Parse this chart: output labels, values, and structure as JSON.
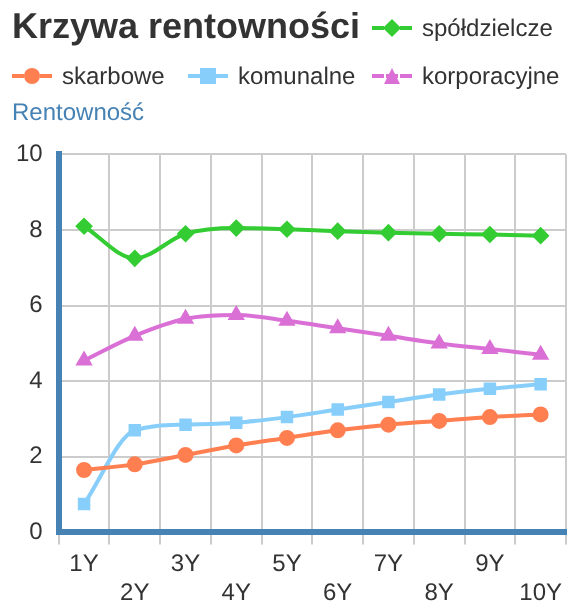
{
  "chart_data": {
    "type": "line",
    "title": "Krzywa rentowności",
    "ylabel": "Rentowność",
    "categories": [
      "1Y",
      "2Y",
      "3Y",
      "4Y",
      "5Y",
      "6Y",
      "7Y",
      "8Y",
      "9Y",
      "10Y"
    ],
    "series": [
      {
        "name": "spółdzielcze",
        "color": "#33cc33",
        "marker": "diamond",
        "values": [
          8.1,
          7.25,
          7.9,
          8.05,
          8.02,
          7.97,
          7.93,
          7.9,
          7.88,
          7.85
        ]
      },
      {
        "name": "skarbowe",
        "color": "#ff7f50",
        "marker": "circle",
        "values": [
          1.65,
          1.8,
          2.05,
          2.3,
          2.5,
          2.7,
          2.85,
          2.95,
          3.05,
          3.12
        ]
      },
      {
        "name": "komunalne",
        "color": "#87cefa",
        "marker": "square",
        "values": [
          0.75,
          2.7,
          2.85,
          2.9,
          3.05,
          3.25,
          3.45,
          3.65,
          3.8,
          3.92
        ]
      },
      {
        "name": "korporacyjne",
        "color": "#da70d6",
        "marker": "triangle",
        "values": [
          4.55,
          5.2,
          5.65,
          5.75,
          5.6,
          5.4,
          5.2,
          5.0,
          4.85,
          4.7
        ]
      }
    ],
    "ylim": [
      0,
      10
    ],
    "yticks": [
      0,
      2,
      4,
      6,
      8,
      10
    ],
    "grid": true,
    "legend": "top",
    "line_style": "solid"
  }
}
